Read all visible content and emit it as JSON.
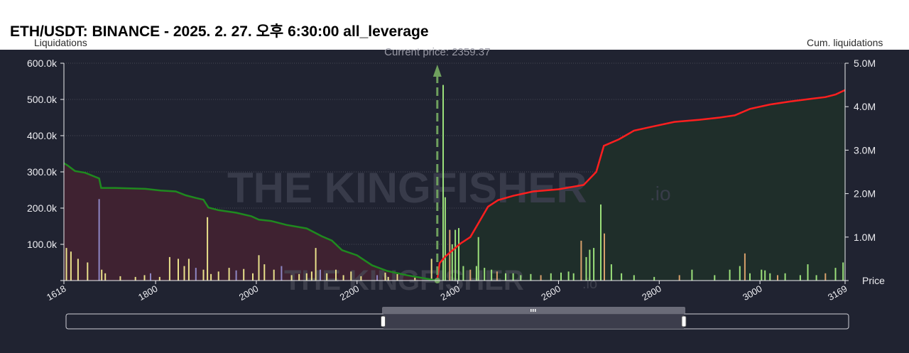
{
  "title": "ETH/USDT: BINANCE - 2025. 2. 27. 오후 6:30:00 all_leverage",
  "watermark": {
    "text_main": "THE KINGFISHER",
    "text_suffix": ".io"
  },
  "colors": {
    "background": "#202331",
    "grid": "#6e6e7a",
    "axis_text": "#ececf0",
    "short_area": "#3f2231",
    "long_area": "#1f2e2a",
    "short_cum_line": "#1f8a1f",
    "long_cum_line": "#ff1f1f",
    "bar_yellow": "#e9e08a",
    "bar_green": "#9be07a",
    "bar_purple": "#8e86c4",
    "bar_orange": "#d7a06b",
    "price_marker": "#6fa05e",
    "slider_fill": "#3f4050"
  },
  "chart_data": {
    "type": "bar",
    "xlim": [
      1618,
      3169
    ],
    "x_ticks": [
      1618,
      1800,
      2000,
      2200,
      2400,
      2600,
      2800,
      3000,
      3169
    ],
    "left_axis": {
      "label": "Liquidations",
      "ylim": [
        0,
        600000
      ],
      "ticks": [
        "",
        "100.0k",
        "200.0k",
        "300.0k",
        "400.0k",
        "500.0k",
        "600.0k"
      ]
    },
    "right_axis": {
      "label": "Cum. liquidations",
      "ylim": [
        0,
        5000000
      ],
      "ticks": [
        "",
        "1.0M",
        "2.0M",
        "3.0M",
        "4.0M",
        "5.0M"
      ]
    },
    "x_label": "Price",
    "current_price": {
      "label": "Current price: 2359.37",
      "value": 2359.37
    },
    "series": [
      {
        "name": "Liquidations",
        "kind": "bar",
        "points": [
          [
            1623,
            90000
          ],
          [
            1632,
            80000
          ],
          [
            1646,
            60000
          ],
          [
            1665,
            50000
          ],
          [
            1688,
            225000
          ],
          [
            1693,
            30000
          ],
          [
            1700,
            20000
          ],
          [
            1730,
            12000
          ],
          [
            1760,
            10000
          ],
          [
            1778,
            15000
          ],
          [
            1790,
            20000
          ],
          [
            1808,
            10000
          ],
          [
            1828,
            65000
          ],
          [
            1845,
            60000
          ],
          [
            1857,
            40000
          ],
          [
            1866,
            60000
          ],
          [
            1880,
            35000
          ],
          [
            1895,
            30000
          ],
          [
            1903,
            175000
          ],
          [
            1910,
            18000
          ],
          [
            1925,
            25000
          ],
          [
            1946,
            35000
          ],
          [
            1960,
            28000
          ],
          [
            1975,
            32000
          ],
          [
            1993,
            20000
          ],
          [
            2005,
            70000
          ],
          [
            2016,
            45000
          ],
          [
            2035,
            30000
          ],
          [
            2050,
            40000
          ],
          [
            2070,
            15000
          ],
          [
            2085,
            18000
          ],
          [
            2100,
            20000
          ],
          [
            2110,
            25000
          ],
          [
            2118,
            90000
          ],
          [
            2127,
            30000
          ],
          [
            2140,
            20000
          ],
          [
            2158,
            30000
          ],
          [
            2173,
            15000
          ],
          [
            2188,
            25000
          ],
          [
            2208,
            12000
          ],
          [
            2240,
            15000
          ],
          [
            2256,
            22000
          ],
          [
            2262,
            10000
          ],
          [
            2280,
            18000
          ],
          [
            2315,
            8000
          ],
          [
            2348,
            60000
          ],
          [
            2371,
            540000
          ],
          [
            2375,
            230000
          ],
          [
            2384,
            140000
          ],
          [
            2389,
            100000
          ],
          [
            2395,
            140000
          ],
          [
            2402,
            145000
          ],
          [
            2411,
            40000
          ],
          [
            2425,
            30000
          ],
          [
            2437,
            40000
          ],
          [
            2441,
            120000
          ],
          [
            2453,
            35000
          ],
          [
            2467,
            30000
          ],
          [
            2478,
            25000
          ],
          [
            2495,
            20000
          ],
          [
            2510,
            20000
          ],
          [
            2525,
            15000
          ],
          [
            2545,
            18000
          ],
          [
            2565,
            15000
          ],
          [
            2585,
            20000
          ],
          [
            2605,
            22000
          ],
          [
            2620,
            25000
          ],
          [
            2630,
            20000
          ],
          [
            2645,
            110000
          ],
          [
            2655,
            65000
          ],
          [
            2662,
            85000
          ],
          [
            2670,
            90000
          ],
          [
            2684,
            210000
          ],
          [
            2691,
            130000
          ],
          [
            2705,
            45000
          ],
          [
            2725,
            20000
          ],
          [
            2750,
            15000
          ],
          [
            2790,
            10000
          ],
          [
            2840,
            15000
          ],
          [
            2865,
            30000
          ],
          [
            2910,
            15000
          ],
          [
            2940,
            30000
          ],
          [
            2960,
            40000
          ],
          [
            2970,
            75000
          ],
          [
            2980,
            20000
          ],
          [
            3003,
            30000
          ],
          [
            3010,
            28000
          ],
          [
            3020,
            20000
          ],
          [
            3035,
            15000
          ],
          [
            3050,
            20000
          ],
          [
            3080,
            15000
          ],
          [
            3095,
            45000
          ],
          [
            3112,
            15000
          ],
          [
            3130,
            20000
          ],
          [
            3150,
            35000
          ],
          [
            3165,
            50000
          ]
        ]
      },
      {
        "name": "Cum. liquidations (short side)",
        "kind": "line",
        "points": [
          [
            1618,
            2700000
          ],
          [
            1625,
            2650000
          ],
          [
            1640,
            2520000
          ],
          [
            1660,
            2480000
          ],
          [
            1675,
            2410000
          ],
          [
            1688,
            2350000
          ],
          [
            1692,
            2130000
          ],
          [
            1720,
            2130000
          ],
          [
            1780,
            2110000
          ],
          [
            1810,
            2070000
          ],
          [
            1840,
            2050000
          ],
          [
            1860,
            1960000
          ],
          [
            1880,
            1900000
          ],
          [
            1895,
            1860000
          ],
          [
            1905,
            1680000
          ],
          [
            1925,
            1620000
          ],
          [
            1960,
            1560000
          ],
          [
            1990,
            1480000
          ],
          [
            2005,
            1400000
          ],
          [
            2030,
            1370000
          ],
          [
            2060,
            1280000
          ],
          [
            2100,
            1200000
          ],
          [
            2130,
            1020000
          ],
          [
            2150,
            920000
          ],
          [
            2170,
            700000
          ],
          [
            2200,
            580000
          ],
          [
            2230,
            350000
          ],
          [
            2260,
            220000
          ],
          [
            2300,
            120000
          ],
          [
            2340,
            40000
          ],
          [
            2359,
            0
          ]
        ]
      },
      {
        "name": "Cum. liquidations (long side)",
        "kind": "line",
        "points": [
          [
            2359,
            0
          ],
          [
            2364,
            400000
          ],
          [
            2375,
            550000
          ],
          [
            2390,
            700000
          ],
          [
            2405,
            850000
          ],
          [
            2425,
            1000000
          ],
          [
            2440,
            1300000
          ],
          [
            2460,
            1700000
          ],
          [
            2480,
            1850000
          ],
          [
            2510,
            1950000
          ],
          [
            2550,
            2050000
          ],
          [
            2600,
            2100000
          ],
          [
            2650,
            2200000
          ],
          [
            2675,
            2500000
          ],
          [
            2690,
            3100000
          ],
          [
            2720,
            3250000
          ],
          [
            2750,
            3450000
          ],
          [
            2790,
            3550000
          ],
          [
            2830,
            3650000
          ],
          [
            2880,
            3700000
          ],
          [
            2920,
            3750000
          ],
          [
            2950,
            3800000
          ],
          [
            2980,
            3950000
          ],
          [
            3020,
            4050000
          ],
          [
            3060,
            4120000
          ],
          [
            3100,
            4180000
          ],
          [
            3130,
            4220000
          ],
          [
            3150,
            4280000
          ],
          [
            3163,
            4350000
          ],
          [
            3169,
            4380000
          ]
        ]
      }
    ]
  }
}
